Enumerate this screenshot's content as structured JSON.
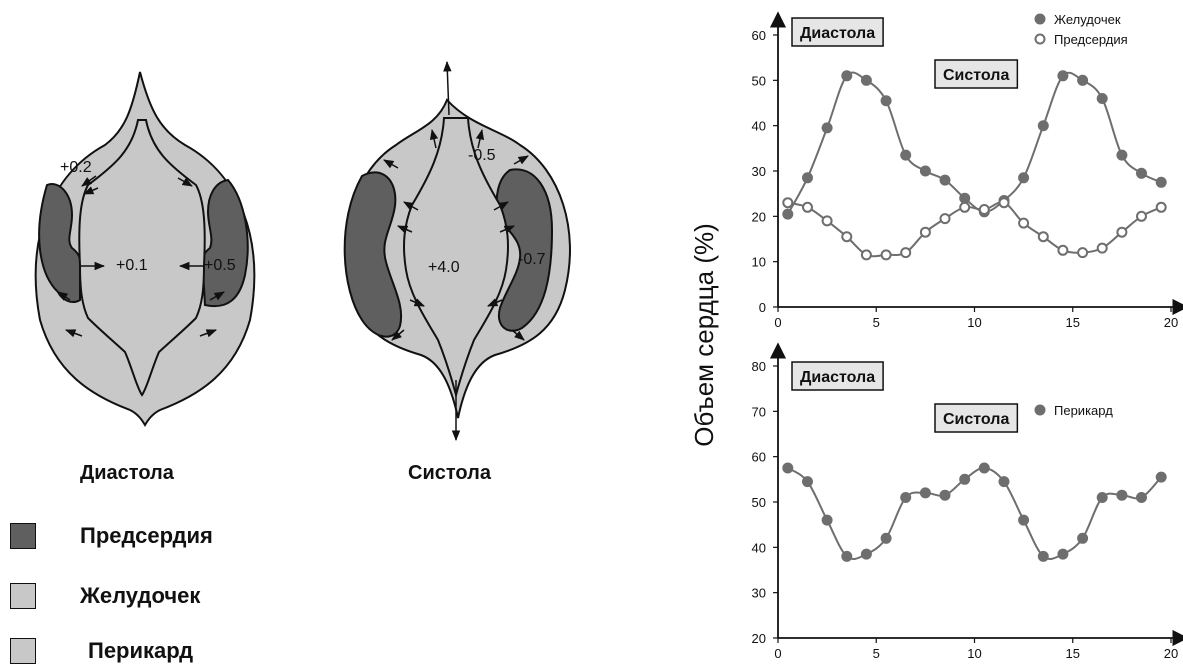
{
  "diagram": {
    "diastole": {
      "caption": "Диастола",
      "pressures": {
        "top_left": "+0.2",
        "center": "+0.1",
        "right": "+0.5"
      }
    },
    "systole": {
      "caption": "Систола",
      "pressures": {
        "top_right": "-0.5",
        "center": "+4.0",
        "right": "-0.7"
      }
    },
    "legend": [
      {
        "label": "Предсердия",
        "color": "#5f5f5f"
      },
      {
        "label": "Желудочек",
        "color": "#c8c8c8"
      },
      {
        "label": "Перикард",
        "color": "#c8c8c8"
      }
    ],
    "colors": {
      "atria": "#5f5f5f",
      "ventricle": "#c8c8c8",
      "pericardium": "#c8c8c8",
      "series": "#6e6e6e"
    }
  },
  "y_axis_label": "Объем сердца (%)",
  "chart_data": [
    {
      "type": "line",
      "x": [
        0.5,
        1.5,
        2.5,
        3.5,
        4.5,
        5.5,
        6.5,
        7.5,
        8.5,
        9.5,
        10.5,
        11.5,
        12.5,
        13.5,
        14.5,
        15.5,
        16.5,
        17.5,
        18.5,
        19.5
      ],
      "series": [
        {
          "name": "Желудочек",
          "marker": "filled",
          "values": [
            20.5,
            28.5,
            39.5,
            51,
            50,
            45.5,
            33.5,
            30,
            28,
            24,
            21,
            23.5,
            28.5,
            40,
            51,
            50,
            46,
            33.5,
            29.5,
            27.5
          ]
        },
        {
          "name": "Предсердия",
          "marker": "open",
          "values": [
            23,
            22,
            19,
            15.5,
            11.5,
            11.5,
            12,
            16.5,
            19.5,
            22,
            21.5,
            23,
            18.5,
            15.5,
            12.5,
            12,
            13,
            16.5,
            20,
            22
          ]
        }
      ],
      "annotations": [
        "Диастола",
        "Систола"
      ],
      "xlim": [
        0,
        20
      ],
      "ylim": [
        0,
        60
      ],
      "xticks": [
        0,
        5,
        10,
        15,
        20
      ],
      "yticks": [
        0,
        10,
        20,
        30,
        40,
        50,
        60
      ],
      "legend_position": "top-right"
    },
    {
      "type": "line",
      "x": [
        0.5,
        1.5,
        2.5,
        3.5,
        4.5,
        5.5,
        6.5,
        7.5,
        8.5,
        9.5,
        10.5,
        11.5,
        12.5,
        13.5,
        14.5,
        15.5,
        16.5,
        17.5,
        18.5,
        19.5
      ],
      "series": [
        {
          "name": "Перикард",
          "marker": "filled",
          "values": [
            57.5,
            54.5,
            46,
            38,
            38.5,
            42,
            51,
            52,
            51.5,
            55,
            57.5,
            54.5,
            46,
            38,
            38.5,
            42,
            51,
            51.5,
            51,
            55.5
          ]
        }
      ],
      "annotations": [
        "Диастола",
        "Систола"
      ],
      "xlim": [
        0,
        20
      ],
      "ylim": [
        20,
        80
      ],
      "xticks": [
        0,
        5,
        10,
        15,
        20
      ],
      "yticks": [
        20,
        30,
        40,
        50,
        60,
        70,
        80
      ],
      "legend_position": "top-right"
    }
  ]
}
